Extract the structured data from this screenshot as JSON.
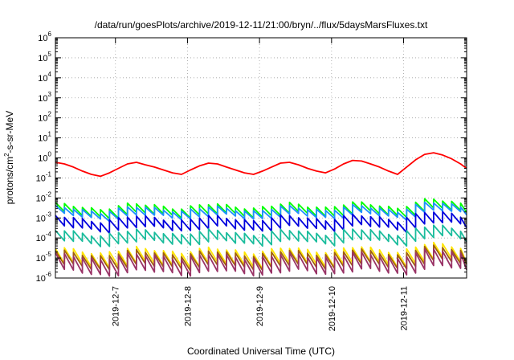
{
  "chart_data": {
    "type": "line",
    "title": "/data/run/goesPlots/archive/2019-12-11/21:00/bryn/../flux/5daysMarsFluxes.txt",
    "xlabel": "Coordinated Universal Time (UTC)",
    "ylabel": {
      "prefix": "protons/cm",
      "sup": "2",
      "suffix": "-s-sr-MeV"
    },
    "yscale": "log",
    "ylim": [
      1e-06,
      1000000.0
    ],
    "y_ticks": [
      {
        "value": 1000000.0,
        "base": "10",
        "exp": "6"
      },
      {
        "value": 100000.0,
        "base": "10",
        "exp": "5"
      },
      {
        "value": 10000.0,
        "base": "10",
        "exp": "4"
      },
      {
        "value": 1000.0,
        "base": "10",
        "exp": "3"
      },
      {
        "value": 100.0,
        "base": "10",
        "exp": "2"
      },
      {
        "value": 10.0,
        "base": "10",
        "exp": "1"
      },
      {
        "value": 1,
        "base": "10",
        "exp": "0"
      },
      {
        "value": 0.1,
        "base": "10",
        "exp": "-1"
      },
      {
        "value": 0.01,
        "base": "10",
        "exp": "-2"
      },
      {
        "value": 0.001,
        "base": "10",
        "exp": "-3"
      },
      {
        "value": 0.0001,
        "base": "10",
        "exp": "-4"
      },
      {
        "value": 1e-05,
        "base": "10",
        "exp": "-5"
      },
      {
        "value": 1e-06,
        "base": "10",
        "exp": "-6"
      }
    ],
    "xlim": [
      "2019-12-06 04:00",
      "2019-12-11 21:00"
    ],
    "x_ticks": [
      "2019-12-7",
      "2019-12-8",
      "2019-12-9",
      "2019-12-10",
      "2019-12-11"
    ],
    "grid": true,
    "legend": "none",
    "sawtooth_period_hours": 3,
    "series": [
      {
        "color": "#ff0000",
        "times": [
          "2019-12-06 04:00",
          "2019-12-06 07:00",
          "2019-12-06 10:00",
          "2019-12-06 13:00",
          "2019-12-06 16:00",
          "2019-12-06 19:00",
          "2019-12-06 22:00",
          "2019-12-07 01:00",
          "2019-12-07 04:00",
          "2019-12-07 07:00",
          "2019-12-07 10:00",
          "2019-12-07 13:00",
          "2019-12-07 16:00",
          "2019-12-07 19:00",
          "2019-12-07 22:00",
          "2019-12-08 01:00",
          "2019-12-08 04:00",
          "2019-12-08 07:00",
          "2019-12-08 10:00",
          "2019-12-08 13:00",
          "2019-12-08 16:00",
          "2019-12-08 19:00",
          "2019-12-08 22:00",
          "2019-12-09 01:00",
          "2019-12-09 04:00",
          "2019-12-09 07:00",
          "2019-12-09 10:00",
          "2019-12-09 13:00",
          "2019-12-09 16:00",
          "2019-12-09 19:00",
          "2019-12-09 22:00",
          "2019-12-10 01:00",
          "2019-12-10 04:00",
          "2019-12-10 07:00",
          "2019-12-10 10:00",
          "2019-12-10 13:00",
          "2019-12-10 16:00",
          "2019-12-10 19:00",
          "2019-12-10 22:00",
          "2019-12-11 01:00",
          "2019-12-11 04:00",
          "2019-12-11 07:00",
          "2019-12-11 10:00",
          "2019-12-11 13:00",
          "2019-12-11 16:00",
          "2019-12-11 19:00",
          "2019-12-11 21:00"
        ],
        "values": [
          0.6,
          0.5,
          0.35,
          0.22,
          0.15,
          0.12,
          0.18,
          0.3,
          0.5,
          0.6,
          0.45,
          0.35,
          0.25,
          0.18,
          0.15,
          0.25,
          0.4,
          0.55,
          0.5,
          0.35,
          0.25,
          0.18,
          0.15,
          0.22,
          0.35,
          0.55,
          0.6,
          0.45,
          0.3,
          0.22,
          0.18,
          0.28,
          0.5,
          0.75,
          0.7,
          0.5,
          0.35,
          0.22,
          0.15,
          0.35,
          0.8,
          1.5,
          1.8,
          1.4,
          0.9,
          0.5,
          0.3
        ]
      },
      {
        "color": "#00ff00",
        "base": 0.0045,
        "drop": 0.35
      },
      {
        "color": "#1e90ff",
        "base": 0.0032,
        "drop": 0.4
      },
      {
        "color": "#0000dd",
        "base": 0.0011,
        "drop": 0.3
      },
      {
        "color": "#1abc9c",
        "base": 0.00022,
        "drop": 0.3
      },
      {
        "color": "#ffe600",
        "base": 2.8e-05,
        "drop": 0.18
      },
      {
        "color": "#a06010",
        "base": 2e-05,
        "drop": 0.2
      },
      {
        "color": "#993366",
        "base": 1.4e-05,
        "drop": 0.15
      }
    ]
  }
}
